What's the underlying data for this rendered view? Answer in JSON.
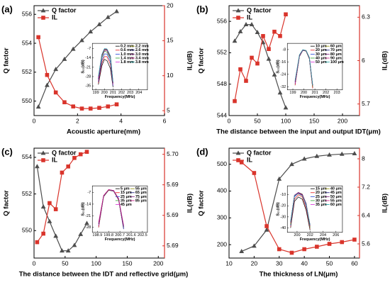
{
  "chart_data": [
    {
      "type": "line",
      "panel_label": "(a)",
      "xlabel": "Acoustic aperture(mm)",
      "ylabel": "Q factor",
      "y2label": "IL(dB)",
      "x": [
        0.2,
        0.6,
        1.0,
        1.4,
        1.8,
        2.2,
        2.6,
        3.0,
        3.4,
        3.8
      ],
      "xlim": [
        0,
        6
      ],
      "xticks": [
        0,
        2,
        4,
        6
      ],
      "ylim": [
        549,
        556.6
      ],
      "yticks": [
        550,
        552,
        554,
        556
      ],
      "y2lim": [
        4.3,
        20
      ],
      "y2ticks": [
        5,
        10,
        15,
        20
      ],
      "series": [
        {
          "name": "Q factor",
          "color": "#4d4d4d",
          "marker": "triangle",
          "values": [
            549.6,
            551.1,
            552.2,
            552.9,
            553.6,
            554.2,
            554.8,
            555.3,
            555.8,
            556.2
          ]
        },
        {
          "name": "IL",
          "color": "#d9342b",
          "marker": "square",
          "axis": "y2",
          "values": [
            15.5,
            10.1,
            7.6,
            6.2,
            5.6,
            5.3,
            5.3,
            5.4,
            5.6,
            5.9
          ]
        }
      ],
      "inset": {
        "xlabel": "Frequency(MHz)",
        "ylabel": "S₂₁(dB)",
        "x": [
          199.3,
          199.7,
          200.0,
          200.3,
          200.7,
          201.0
        ],
        "xlim": [
          198.6,
          205
        ],
        "xticks": [
          199,
          200,
          201,
          202,
          203,
          204
        ],
        "ylim": [
          -38,
          -3
        ],
        "yticks": [
          -7,
          -14,
          -21,
          -28,
          -35
        ],
        "series": [
          {
            "name": "0.2 mm",
            "color": "#000000",
            "values": [
              -34,
              -20,
              -15,
              -16,
              -22,
              -36
            ]
          },
          {
            "name": "0.6 mm",
            "color": "#e41a1c",
            "values": [
              -33,
              -18,
              -13,
              -13,
              -19,
              -35
            ]
          },
          {
            "name": "1.0 mm",
            "color": "#1f3fd6",
            "values": [
              -32,
              -16,
              -11,
              -11,
              -17,
              -35
            ]
          },
          {
            "name": "1.4 mm",
            "color": "#2ca02c",
            "values": [
              -31,
              -14,
              -9,
              -9.5,
              -15,
              -34
            ]
          },
          {
            "name": "1.8 mm",
            "color": "#d62ad6",
            "values": [
              -31,
              -13,
              -8.5,
              -8.5,
              -14,
              -34
            ]
          },
          {
            "name": "2.2 mm",
            "color": "#8c8c00",
            "values": [
              -30,
              -12.5,
              -8,
              -8,
              -13.5,
              -33
            ]
          },
          {
            "name": "2.6 mm",
            "color": "#1a1a80",
            "values": [
              -30,
              -12,
              -7.5,
              -7.8,
              -13,
              -33
            ]
          },
          {
            "name": "3.0 mm",
            "color": "#7f1a7f",
            "values": [
              -29,
              -12,
              -7.5,
              -7.5,
              -13,
              -33
            ]
          },
          {
            "name": "3.4 mm",
            "color": "#c71585",
            "values": [
              -29,
              -11.5,
              -7.2,
              -7.4,
              -12.5,
              -32
            ]
          },
          {
            "name": "3.8 mm",
            "color": "#1aa0a0",
            "values": [
              -28,
              -11.5,
              -7,
              -7.2,
              -12.5,
              -32
            ]
          }
        ]
      }
    },
    {
      "type": "line",
      "panel_label": "(b)",
      "xlabel": "The distance between the input and output IDT(μm)",
      "ylabel": "Q factor",
      "y2label": "IL(dB)",
      "x": [
        10,
        20,
        30,
        40,
        50,
        60,
        70,
        80,
        90,
        100
      ],
      "xlim": [
        0,
        230
      ],
      "xticks": [
        0,
        50,
        100,
        150,
        200
      ],
      "ylim": [
        544,
        558
      ],
      "yticks": [
        544,
        548,
        552,
        556
      ],
      "y2lim": [
        5.62,
        6.38
      ],
      "y2ticks": [
        5.7,
        6.0,
        6.3
      ],
      "series": [
        {
          "name": "Q factor",
          "color": "#4d4d4d",
          "marker": "triangle",
          "values": [
            553.5,
            554.7,
            555.6,
            555.6,
            554.6,
            553.3,
            551.2,
            549.2,
            546.9,
            545.0
          ]
        },
        {
          "name": "IL",
          "color": "#d9342b",
          "marker": "square",
          "axis": "y2",
          "values": [
            5.72,
            5.94,
            5.86,
            6.02,
            5.98,
            6.17,
            6.08,
            6.2,
            6.17,
            6.32
          ]
        }
      ],
      "inset": {
        "xlabel": "Frequency(MHz)",
        "ylabel": "S₂₁(dB)",
        "x": [
          199.2,
          199.6,
          199.9,
          200.2,
          200.5,
          200.8
        ],
        "xlim": [
          198.5,
          203.5
        ],
        "xticks": [
          199,
          200,
          201,
          202,
          203
        ],
        "ylim": [
          -34,
          -4
        ],
        "yticks": [
          -8,
          -16,
          -24,
          -32
        ],
        "series": [
          {
            "name": "10 μm",
            "color": "#000000",
            "values": [
              -31,
              -12.5,
              -8.6,
              -9,
              -14,
              -33
            ]
          },
          {
            "name": "20 μm",
            "color": "#e41a1c",
            "values": [
              -31,
              -12.3,
              -8.5,
              -9,
              -14,
              -33
            ]
          },
          {
            "name": "30 μm",
            "color": "#1f3fd6",
            "values": [
              -30,
              -12.2,
              -8.5,
              -8.9,
              -13.8,
              -32
            ]
          },
          {
            "name": "40 μm",
            "color": "#2ca02c",
            "values": [
              -30,
              -12,
              -8.4,
              -8.9,
              -13.7,
              -32
            ]
          },
          {
            "name": "50 μm",
            "color": "#d62ad6",
            "values": [
              -30,
              -12,
              -8.4,
              -8.8,
              -13.6,
              -32
            ]
          },
          {
            "name": "60 μm",
            "color": "#8c8c00",
            "values": [
              -29,
              -11.8,
              -8.3,
              -8.8,
              -13.5,
              -32
            ]
          },
          {
            "name": "70 μm",
            "color": "#1a1a80",
            "values": [
              -29,
              -11.7,
              -8.3,
              -8.7,
              -13.4,
              -31
            ]
          },
          {
            "name": "80 μm",
            "color": "#7f1a7f",
            "values": [
              -29,
              -11.6,
              -8.2,
              -8.7,
              -13.3,
              -31
            ]
          },
          {
            "name": "90 μm",
            "color": "#c71585",
            "values": [
              -28,
              -11.5,
              -8.2,
              -8.6,
              -13.2,
              -31
            ]
          },
          {
            "name": "100 μm",
            "color": "#1aa0a0",
            "values": [
              -28,
              -11.4,
              -8.1,
              -8.6,
              -13.1,
              -31
            ]
          }
        ]
      }
    },
    {
      "type": "line",
      "panel_label": "(c)",
      "xlabel": "The distance between the  IDT and reflective grid(μm)",
      "ylabel": "Q factor",
      "y2label": "IL(dB)",
      "x": [
        5,
        15,
        25,
        35,
        45,
        55,
        65,
        75,
        85
      ],
      "xlim": [
        0,
        210
      ],
      "xticks": [
        0,
        50,
        100,
        150,
        200
      ],
      "ylim": [
        548.5,
        554.5
      ],
      "yticks": [
        550,
        552,
        554
      ],
      "y2lim": [
        5.6865,
        5.6955
      ],
      "y2ticks": [
        {
          "value": 5.6875,
          "label": "5.69"
        },
        {
          "value": 5.69,
          "label": "5.69"
        },
        {
          "value": 5.6925,
          "label": "5.69"
        },
        {
          "value": 5.695,
          "label": "5.70"
        }
      ],
      "series": [
        {
          "name": "Q factor",
          "color": "#4d4d4d",
          "marker": "triangle",
          "values": [
            553.5,
            551.3,
            550.5,
            549.7,
            548.9,
            548.9,
            549.2,
            549.8,
            550.4
          ]
        },
        {
          "name": "IL",
          "color": "#d9342b",
          "marker": "square",
          "axis": "y2",
          "values": [
            5.6878,
            5.6885,
            5.691,
            5.6905,
            5.6935,
            5.694,
            5.6947,
            5.695,
            5.6952
          ]
        }
      ],
      "inset": {
        "xlabel": "Frequency(MHz)",
        "ylabel": "S₂₁(dB)",
        "x": [
          199.0,
          199.4,
          199.8,
          200.2,
          200.6,
          201.0
        ],
        "xlim": [
          198.5,
          202.9
        ],
        "xticks": [
          198.9,
          199.8,
          200.7,
          201.6,
          202.5
        ],
        "ylim": [
          -31,
          -3
        ],
        "yticks": [
          -7,
          -14,
          -21,
          -28
        ],
        "series": [
          {
            "name": "5 μm",
            "color": "#000000",
            "values": [
              -28,
              -9.5,
              -5.6,
              -6.2,
              -11.5,
              -29
            ]
          },
          {
            "name": "15 μm",
            "color": "#e41a1c",
            "values": [
              -28,
              -9.4,
              -5.6,
              -6.1,
              -11.4,
              -29
            ]
          },
          {
            "name": "25 μm",
            "color": "#1f3fd6",
            "values": [
              -27,
              -9.3,
              -5.5,
              -6.1,
              -11.3,
              -29
            ]
          },
          {
            "name": "35 μm",
            "color": "#2ca02c",
            "values": [
              -27,
              -9.2,
              -5.5,
              -6,
              -11.2,
              -28
            ]
          },
          {
            "name": "45 μm",
            "color": "#d62ad6",
            "values": [
              -27,
              -9.1,
              -5.4,
              -6,
              -11.1,
              -28
            ]
          },
          {
            "name": "55 μm",
            "color": "#8c8c00",
            "values": [
              -26,
              -9,
              -5.4,
              -5.9,
              -11,
              -28
            ]
          },
          {
            "name": "65 μm",
            "color": "#1a1a80",
            "values": [
              -26,
              -9,
              -5.3,
              -5.9,
              -10.9,
              -28
            ]
          },
          {
            "name": "75 μm",
            "color": "#7f1a7f",
            "values": [
              -26,
              -8.9,
              -5.3,
              -5.8,
              -10.8,
              -27
            ]
          },
          {
            "name": "85 μm",
            "color": "#c71585",
            "values": [
              -25,
              -8.8,
              -5.2,
              -5.8,
              -10.7,
              -27
            ]
          }
        ]
      }
    },
    {
      "type": "line",
      "panel_label": "(d)",
      "xlabel": "The thickness of LN(μm)",
      "ylabel": "Q factor",
      "y2label": "IL(dB)",
      "x": [
        15,
        20,
        25,
        30,
        35,
        40,
        45,
        50,
        55,
        60
      ],
      "xlim": [
        10,
        62
      ],
      "xticks": [
        10,
        20,
        30,
        40,
        50,
        60
      ],
      "ylim": [
        150,
        560
      ],
      "yticks": [
        200,
        300,
        400,
        500
      ],
      "y2lim": [
        5.2,
        8.3
      ],
      "y2ticks": [
        5.6,
        6.4,
        7.2,
        8.0
      ],
      "series": [
        {
          "name": "Q factor",
          "color": "#4d4d4d",
          "marker": "triangle",
          "values": [
            175,
            195,
            255,
            445,
            500,
            520,
            530,
            535,
            538,
            540
          ]
        },
        {
          "name": "IL",
          "color": "#d9342b",
          "marker": "square",
          "axis": "y2",
          "values": [
            7.9,
            7.6,
            6.1,
            5.45,
            5.35,
            5.45,
            5.52,
            5.6,
            5.65,
            5.72
          ]
        }
      ],
      "inset": {
        "xlabel": "Frequency(MHz)",
        "ylabel": "S₂₁(dB)",
        "x": [
          199.0,
          199.6,
          200.2,
          200.8,
          201.4,
          202.0
        ],
        "xlim": [
          198.5,
          207
        ],
        "xticks": [
          200,
          202,
          204,
          206
        ],
        "ylim": [
          -44,
          -2
        ],
        "yticks": [
          -10,
          -20,
          -30,
          -40
        ],
        "series": [
          {
            "name": "15 μm",
            "color": "#000000",
            "values": [
              -40,
              -16,
              -12,
              -14,
              -24,
              -42
            ]
          },
          {
            "name": "20 μm",
            "color": "#e41a1c",
            "values": [
              -39,
              -14,
              -10,
              -12,
              -22,
              -41
            ]
          },
          {
            "name": "25 μm",
            "color": "#1f3fd6",
            "values": [
              -38,
              -12,
              -8.5,
              -10,
              -20,
              -40
            ]
          },
          {
            "name": "30 μm",
            "color": "#2ca02c",
            "values": [
              -37,
              -11,
              -8,
              -9.5,
              -19,
              -40
            ]
          },
          {
            "name": "35 μm",
            "color": "#d62ad6",
            "values": [
              -36,
              -11,
              -8,
              -9.5,
              -19,
              -39
            ]
          },
          {
            "name": "40 μm",
            "color": "#8c8c00",
            "values": [
              -36,
              -10.5,
              -8,
              -9.5,
              -18,
              -39
            ]
          },
          {
            "name": "45 μm",
            "color": "#1a1a80",
            "values": [
              -35,
              -10.5,
              -8,
              -9.8,
              -18,
              -38
            ]
          },
          {
            "name": "50 μm",
            "color": "#7f1a7f",
            "values": [
              -35,
              -10.5,
              -8.2,
              -10,
              -18,
              -38
            ]
          },
          {
            "name": "55 μm",
            "color": "#c71585",
            "values": [
              -34,
              -10.8,
              -8.5,
              -10.5,
              -19,
              -37
            ]
          },
          {
            "name": "60 μm",
            "color": "#1aa0a0",
            "values": [
              -34,
              -11,
              -9,
              -11,
              -19,
              -37
            ]
          }
        ]
      }
    }
  ]
}
